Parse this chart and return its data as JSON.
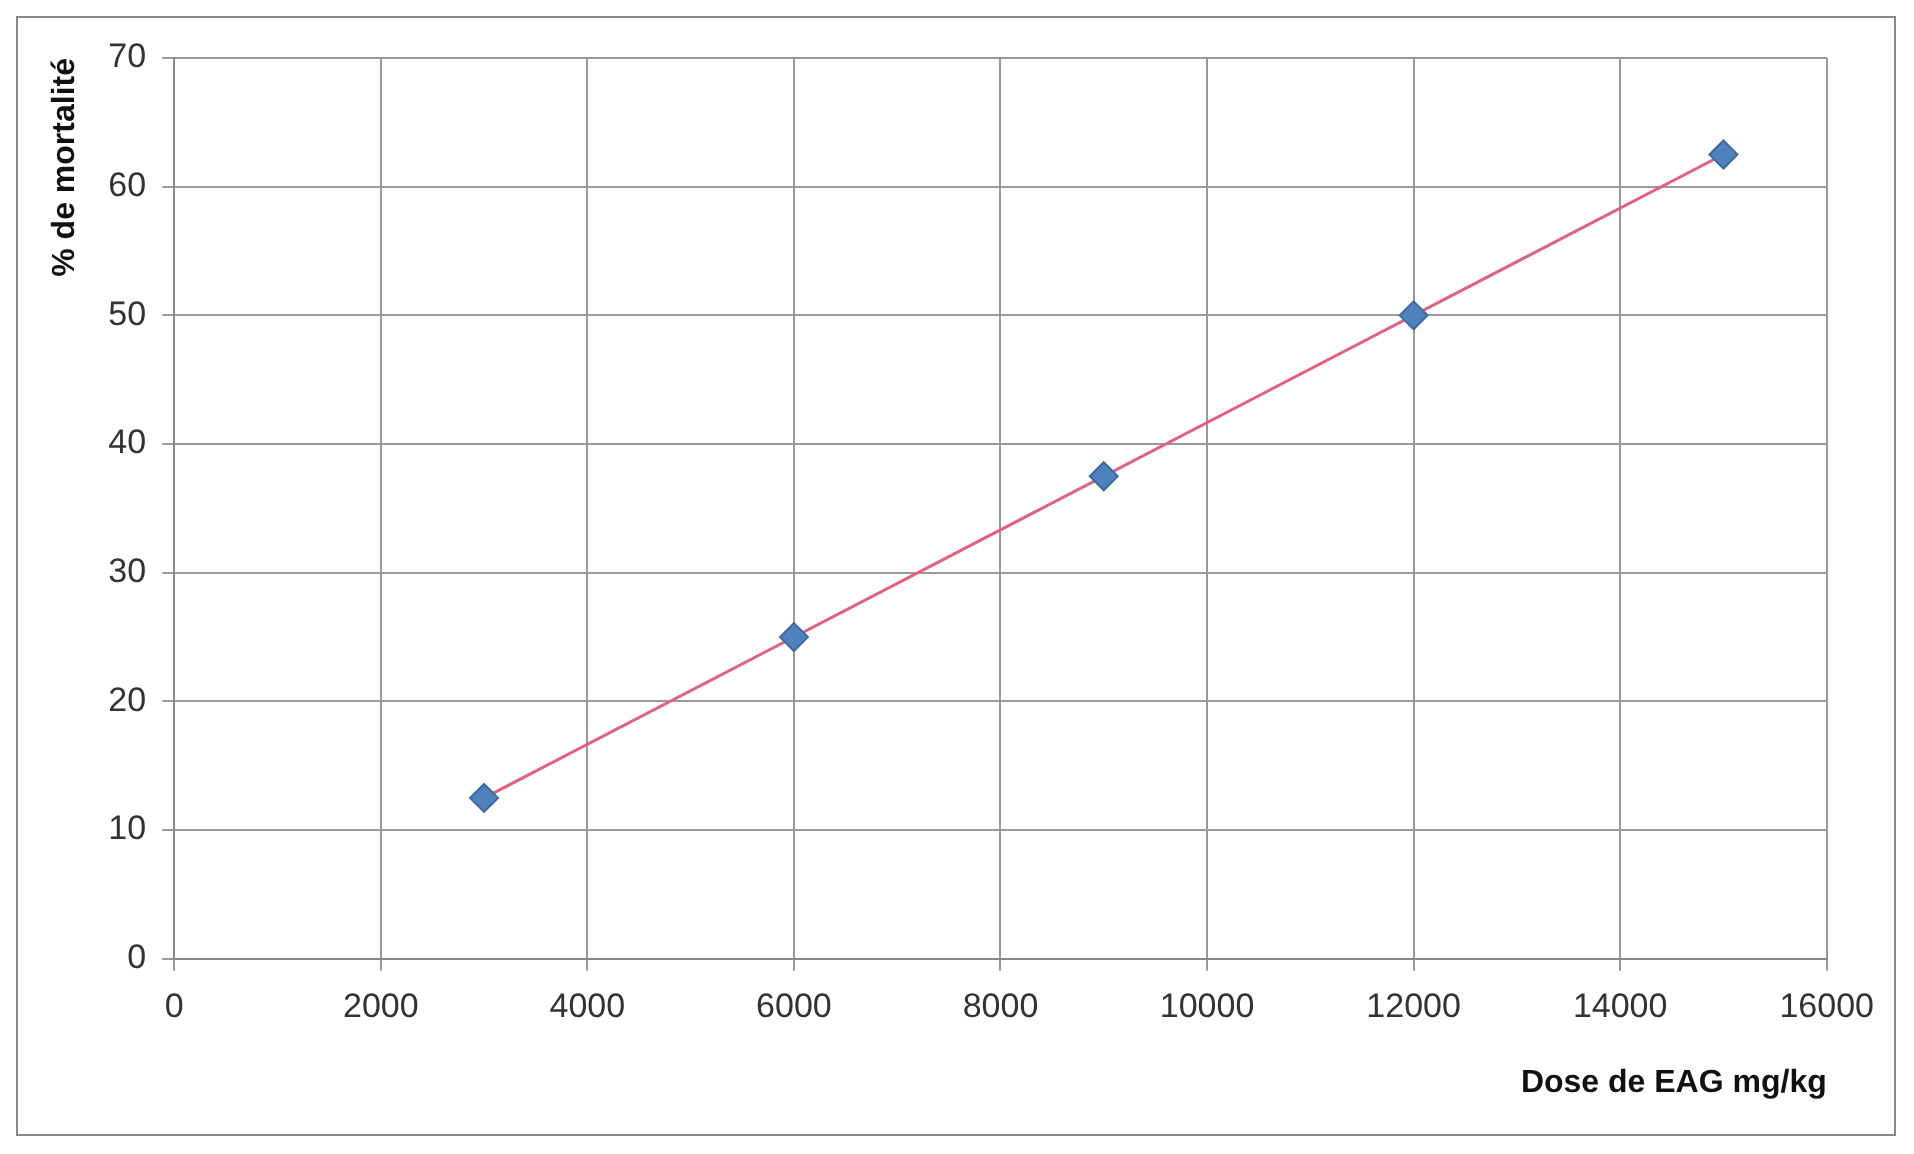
{
  "chart_data": {
    "type": "scatter",
    "xlabel": "Dose de EAG mg/kg",
    "ylabel": "% de mortalité",
    "xlim": [
      0,
      16000
    ],
    "xticks": [
      0,
      2000,
      4000,
      6000,
      8000,
      10000,
      12000,
      14000,
      16000
    ],
    "ylim": [
      0,
      70
    ],
    "yticks": [
      0,
      10,
      20,
      30,
      40,
      50,
      60,
      70
    ],
    "grid": true,
    "legend": false,
    "series": [
      {
        "type": "scatter",
        "color": "#4f81bd",
        "marker": "diamond",
        "x": [
          3000,
          6000,
          9000,
          12000,
          15000
        ],
        "values": [
          12.5,
          25,
          37.5,
          50,
          62.5
        ]
      },
      {
        "type": "line",
        "color": "#e0607e",
        "marker": "none",
        "line_style": "solid",
        "x": [
          3000,
          15000
        ],
        "values": [
          12.5,
          62.5
        ]
      }
    ]
  }
}
